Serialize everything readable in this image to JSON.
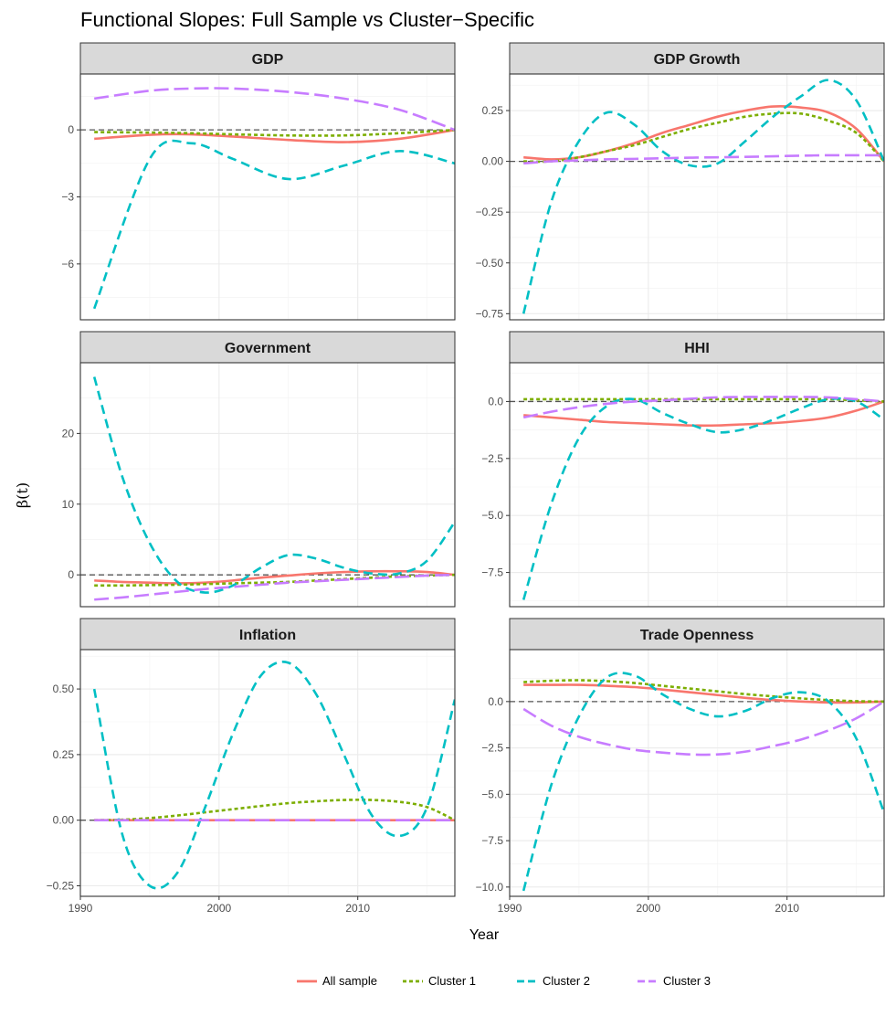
{
  "chart_data": {
    "type": "line",
    "title": "Functional Slopes: Full Sample vs Cluster−Specific",
    "xlabel": "Year",
    "ylabel": "β(t)",
    "xlim": [
      1990,
      2017
    ],
    "x_ticks": [
      1990,
      2000,
      2010
    ],
    "grid": true,
    "legend_position": "bottom",
    "series_styles": [
      {
        "name": "All sample",
        "color": "#F8766D",
        "dash": "solid"
      },
      {
        "name": "Cluster 1",
        "color": "#7CAE00",
        "dash": "dotted"
      },
      {
        "name": "Cluster 2",
        "color": "#00BFC4",
        "dash": "dashed"
      },
      {
        "name": "Cluster 3",
        "color": "#C77CFF",
        "dash": "longdash"
      }
    ],
    "panels": [
      {
        "title": "GDP",
        "ylim": [
          -8.5,
          2.5
        ],
        "y_ticks": [
          0,
          -3,
          -6
        ],
        "y_tick_labels": [
          "0",
          "−3",
          "−6"
        ],
        "x": [
          1991,
          1995,
          1998,
          2001,
          2005,
          2009,
          2013,
          2017
        ],
        "series": [
          {
            "name": "All sample",
            "values": [
              -0.4,
              -0.22,
              -0.2,
              -0.3,
              -0.45,
              -0.55,
              -0.4,
              0.0
            ]
          },
          {
            "name": "Cluster 1",
            "values": [
              -0.1,
              -0.12,
              -0.15,
              -0.2,
              -0.25,
              -0.25,
              -0.15,
              0.0
            ]
          },
          {
            "name": "Cluster 2",
            "values": [
              -8.0,
              -1.3,
              -0.6,
              -1.3,
              -2.2,
              -1.6,
              -0.95,
              -1.5
            ]
          },
          {
            "name": "Cluster 3",
            "values": [
              1.4,
              1.75,
              1.85,
              1.85,
              1.7,
              1.4,
              0.9,
              0.0
            ]
          }
        ]
      },
      {
        "title": "GDP Growth",
        "ylim": [
          -0.78,
          0.43
        ],
        "y_ticks": [
          0.25,
          0.0,
          -0.25,
          -0.5,
          -0.75
        ],
        "y_tick_labels": [
          "0.25",
          "0.00",
          "−0.25",
          "−0.50",
          "−0.75"
        ],
        "x": [
          1991,
          1993,
          1995,
          1997,
          1999,
          2001,
          2003,
          2005,
          2007,
          2009,
          2011,
          2013,
          2015,
          2017
        ],
        "series": [
          {
            "name": "All sample",
            "values": [
              0.02,
              0.01,
              0.02,
              0.05,
              0.09,
              0.14,
              0.18,
              0.22,
              0.25,
              0.27,
              0.265,
              0.24,
              0.16,
              0.0
            ]
          },
          {
            "name": "Cluster 1",
            "values": [
              0.0,
              0.0,
              0.02,
              0.05,
              0.08,
              0.12,
              0.16,
              0.19,
              0.22,
              0.235,
              0.235,
              0.2,
              0.14,
              0.0
            ]
          },
          {
            "name": "Cluster 2",
            "values": [
              -0.75,
              -0.2,
              0.1,
              0.24,
              0.18,
              0.05,
              -0.02,
              -0.01,
              0.1,
              0.22,
              0.32,
              0.4,
              0.3,
              0.0
            ]
          },
          {
            "name": "Cluster 3",
            "values": [
              -0.01,
              0.0,
              0.005,
              0.01,
              0.012,
              0.015,
              0.018,
              0.02,
              0.022,
              0.025,
              0.028,
              0.03,
              0.03,
              0.03
            ]
          }
        ]
      },
      {
        "title": "Government",
        "ylim": [
          -4.5,
          30
        ],
        "y_ticks": [
          20,
          10,
          0
        ],
        "y_tick_labels": [
          "20",
          "10",
          "0"
        ],
        "x": [
          1991,
          1993,
          1995,
          1997,
          1999,
          2001,
          2003,
          2005,
          2007,
          2009,
          2011,
          2013,
          2015,
          2017
        ],
        "series": [
          {
            "name": "All sample",
            "values": [
              -0.8,
              -1.0,
              -1.1,
              -1.2,
              -1.1,
              -0.8,
              -0.4,
              -0.1,
              0.2,
              0.4,
              0.5,
              0.5,
              0.4,
              0.0
            ]
          },
          {
            "name": "Cluster 1",
            "values": [
              -1.5,
              -1.5,
              -1.45,
              -1.4,
              -1.3,
              -1.2,
              -1.1,
              -1.0,
              -0.8,
              -0.6,
              -0.4,
              -0.2,
              -0.1,
              0.0
            ]
          },
          {
            "name": "Cluster 2",
            "values": [
              28.0,
              14.0,
              4.5,
              -1.0,
              -2.5,
              -1.5,
              1.0,
              2.8,
              2.3,
              1.0,
              0.2,
              0.2,
              2.0,
              7.5
            ]
          },
          {
            "name": "Cluster 3",
            "values": [
              -3.5,
              -3.2,
              -2.8,
              -2.4,
              -2.0,
              -1.7,
              -1.4,
              -1.1,
              -0.9,
              -0.7,
              -0.5,
              -0.3,
              -0.1,
              0.0
            ]
          }
        ]
      },
      {
        "title": "HHI",
        "ylim": [
          -9.0,
          1.7
        ],
        "y_ticks": [
          0.0,
          -2.5,
          -5.0,
          -7.5
        ],
        "y_tick_labels": [
          "0.0",
          "−2.5",
          "−5.0",
          "−7.5"
        ],
        "x": [
          1991,
          1993,
          1995,
          1997,
          1999,
          2001,
          2003,
          2005,
          2007,
          2009,
          2011,
          2013,
          2015,
          2017
        ],
        "series": [
          {
            "name": "All sample",
            "values": [
              -0.6,
              -0.7,
              -0.8,
              -0.9,
              -0.95,
              -1.0,
              -1.05,
              -1.05,
              -1.0,
              -0.95,
              -0.85,
              -0.7,
              -0.4,
              0.0
            ]
          },
          {
            "name": "Cluster 1",
            "values": [
              0.1,
              0.1,
              0.1,
              0.1,
              0.1,
              0.1,
              0.1,
              0.1,
              0.1,
              0.1,
              0.1,
              0.1,
              0.05,
              0.0
            ]
          },
          {
            "name": "Cluster 2",
            "values": [
              -8.7,
              -4.5,
              -1.6,
              -0.2,
              0.1,
              -0.5,
              -1.0,
              -1.35,
              -1.2,
              -0.8,
              -0.3,
              0.1,
              0.0,
              -0.8
            ]
          },
          {
            "name": "Cluster 3",
            "values": [
              -0.7,
              -0.45,
              -0.25,
              -0.1,
              0.0,
              0.05,
              0.12,
              0.18,
              0.2,
              0.2,
              0.2,
              0.18,
              0.1,
              0.0
            ]
          }
        ]
      },
      {
        "title": "Inflation",
        "ylim": [
          -0.29,
          0.65
        ],
        "y_ticks": [
          0.5,
          0.25,
          0.0,
          -0.25
        ],
        "y_tick_labels": [
          "0.50",
          "0.25",
          "0.00",
          "−0.25"
        ],
        "x": [
          1991,
          1993,
          1995,
          1997,
          1999,
          2001,
          2003,
          2005,
          2007,
          2009,
          2011,
          2013,
          2015,
          2017
        ],
        "series": [
          {
            "name": "All sample",
            "values": [
              0.0,
              0.0,
              0.0,
              0.0,
              0.0,
              0.0,
              0.0,
              0.0,
              0.0,
              0.0,
              0.0,
              0.0,
              0.0,
              0.0
            ]
          },
          {
            "name": "Cluster 1",
            "values": [
              0.0,
              0.002,
              0.008,
              0.018,
              0.03,
              0.042,
              0.054,
              0.065,
              0.072,
              0.077,
              0.077,
              0.07,
              0.05,
              0.0
            ]
          },
          {
            "name": "Cluster 2",
            "values": [
              0.5,
              -0.05,
              -0.25,
              -0.2,
              0.05,
              0.33,
              0.55,
              0.6,
              0.48,
              0.25,
              0.02,
              -0.06,
              0.05,
              0.46
            ]
          },
          {
            "name": "Cluster 3",
            "values": [
              0.0,
              0.0,
              0.0,
              0.0,
              0.0,
              0.0,
              0.0,
              0.0,
              0.0,
              0.0,
              0.0,
              0.0,
              0.0,
              0.0
            ]
          }
        ]
      },
      {
        "title": "Trade Openness",
        "ylim": [
          -10.5,
          2.8
        ],
        "y_ticks": [
          0.0,
          -2.5,
          -5.0,
          -7.5,
          -10.0
        ],
        "y_tick_labels": [
          "0.0",
          "−2.5",
          "−5.0",
          "−7.5",
          "−10.0"
        ],
        "x": [
          1991,
          1993,
          1995,
          1997,
          1999,
          2001,
          2003,
          2005,
          2007,
          2009,
          2011,
          2013,
          2015,
          2017
        ],
        "series": [
          {
            "name": "All sample",
            "values": [
              0.9,
              0.9,
              0.9,
              0.85,
              0.78,
              0.65,
              0.5,
              0.35,
              0.2,
              0.08,
              0.0,
              -0.05,
              -0.05,
              0.0
            ]
          },
          {
            "name": "Cluster 1",
            "values": [
              1.05,
              1.12,
              1.15,
              1.1,
              1.0,
              0.85,
              0.7,
              0.55,
              0.4,
              0.28,
              0.17,
              0.08,
              0.02,
              0.0
            ]
          },
          {
            "name": "Cluster 2",
            "values": [
              -10.2,
              -4.5,
              -0.8,
              1.3,
              1.4,
              0.4,
              -0.4,
              -0.8,
              -0.5,
              0.2,
              0.5,
              0.0,
              -2.0,
              -6.0
            ]
          },
          {
            "name": "Cluster 3",
            "values": [
              -0.4,
              -1.3,
              -1.9,
              -2.3,
              -2.6,
              -2.75,
              -2.85,
              -2.85,
              -2.7,
              -2.4,
              -2.05,
              -1.55,
              -0.9,
              0.0
            ]
          }
        ]
      }
    ],
    "legend": [
      "All sample",
      "Cluster 1",
      "Cluster 2",
      "Cluster 3"
    ]
  }
}
